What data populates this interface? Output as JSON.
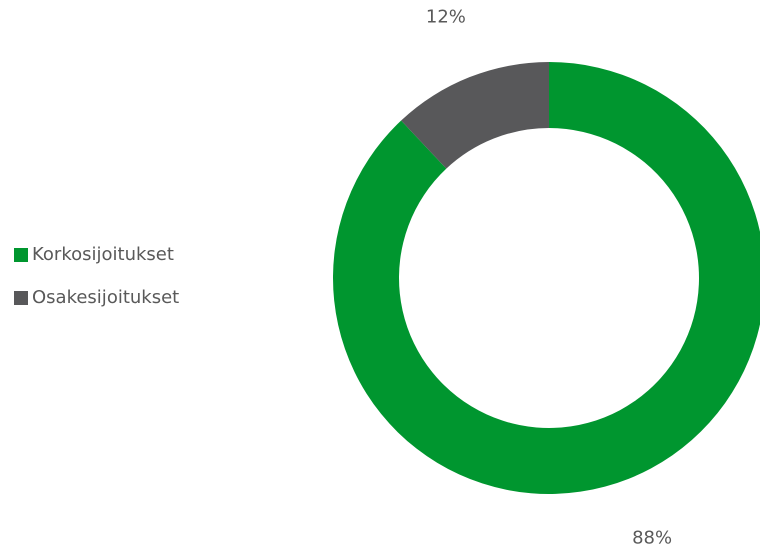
{
  "chart_data": {
    "type": "donut",
    "categories": [
      "Korkosijoitukset",
      "Osakesijoitukset"
    ],
    "values": [
      88,
      12
    ],
    "value_labels": [
      "88%",
      "12%"
    ],
    "colors": [
      "#00962f",
      "#58585a"
    ],
    "legend": "left"
  }
}
